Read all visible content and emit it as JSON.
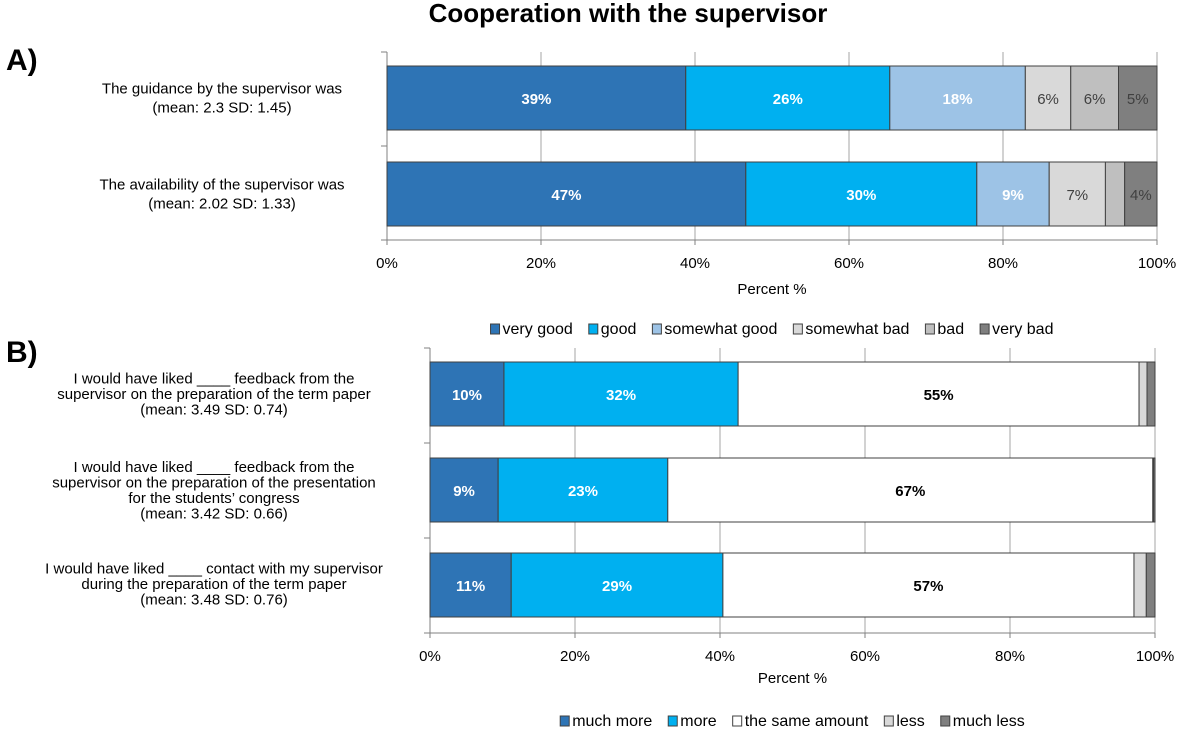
{
  "title": "Cooperation with the supervisor",
  "chart_data": [
    {
      "panel_label": "A)",
      "type": "bar",
      "orientation": "horizontal",
      "stacked": true,
      "xlabel": "Percent %",
      "xlim": [
        0,
        100
      ],
      "xticks": [
        "0%",
        "20%",
        "40%",
        "60%",
        "80%",
        "100%"
      ],
      "grid": true,
      "legend_position": "bottom",
      "categories": [
        [
          "The guidance by the supervisor was",
          "(mean: 2.3 SD: 1.45)"
        ],
        [
          "The availability of the supervisor was",
          "(mean: 2.02 SD: 1.33)"
        ]
      ],
      "series": [
        {
          "name": "very good",
          "color": "#2e74b5",
          "values": [
            38.8,
            46.6
          ],
          "labels": [
            "39%",
            "47%"
          ],
          "label_style": "white-bold"
        },
        {
          "name": "good",
          "color": "#00b0f0",
          "values": [
            26.5,
            30.0
          ],
          "labels": [
            "26%",
            "30%"
          ],
          "label_style": "white-bold"
        },
        {
          "name": "somewhat good",
          "color": "#9dc3e6",
          "values": [
            17.6,
            9.4
          ],
          "labels": [
            "18%",
            "9%"
          ],
          "label_style": "white-bold"
        },
        {
          "name": "somewhat bad",
          "color": "#d9d9d9",
          "values": [
            5.9,
            7.3
          ],
          "labels": [
            "6%",
            "7%"
          ],
          "label_style": "gray"
        },
        {
          "name": "bad",
          "color": "#bfbfbf",
          "values": [
            6.2,
            2.5
          ],
          "labels": [
            "6%",
            ""
          ],
          "label_style": "gray"
        },
        {
          "name": "very bad",
          "color": "#7f7f7f",
          "values": [
            5.0,
            4.2
          ],
          "labels": [
            "5%",
            "4%"
          ],
          "label_style": "gray"
        }
      ]
    },
    {
      "panel_label": "B)",
      "type": "bar",
      "orientation": "horizontal",
      "stacked": true,
      "xlabel": "Percent %",
      "xlim": [
        0,
        100
      ],
      "xticks": [
        "0%",
        "20%",
        "40%",
        "60%",
        "80%",
        "100%"
      ],
      "grid": true,
      "legend_position": "bottom",
      "categories": [
        [
          "I would have liked ____ feedback from the",
          "supervisor on the preparation of the term paper",
          "(mean: 3.49 SD: 0.74)"
        ],
        [
          "I would have liked ____ feedback from the",
          "supervisor on the preparation of the presentation",
          "for the students’ congress",
          "(mean: 3.42 SD: 0.66)"
        ],
        [
          "I would have liked ____ contact with my supervisor",
          "during the preparation of the term paper",
          "(mean: 3.48 SD: 0.76)"
        ]
      ],
      "series": [
        {
          "name": "much more",
          "color": "#2e74b5",
          "values": [
            10.2,
            9.4,
            11.2
          ],
          "labels": [
            "10%",
            "9%",
            "11%"
          ],
          "label_style": "white-bold"
        },
        {
          "name": "more",
          "color": "#00b0f0",
          "values": [
            32.3,
            23.4,
            29.2
          ],
          "labels": [
            "32%",
            "23%",
            "29%"
          ],
          "label_style": "white-bold"
        },
        {
          "name": "the same amount",
          "color": "#ffffff",
          "values": [
            55.3,
            66.9,
            56.7
          ],
          "labels": [
            "55%",
            "67%",
            "57%"
          ],
          "label_style": "black-bold"
        },
        {
          "name": "less",
          "color": "#d9d9d9",
          "values": [
            1.1,
            0.1,
            1.7
          ],
          "labels": [
            "",
            "",
            ""
          ],
          "label_style": "gray"
        },
        {
          "name": "much less",
          "color": "#7f7f7f",
          "values": [
            1.1,
            0.2,
            1.2
          ],
          "labels": [
            "",
            "",
            ""
          ],
          "label_style": "gray"
        }
      ]
    }
  ]
}
